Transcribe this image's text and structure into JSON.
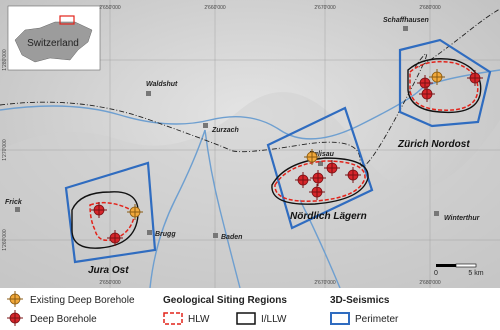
{
  "inset_label": "Switzerland",
  "grid_labels": {
    "top": [
      "2'650'000",
      "2'660'000",
      "2'670'000",
      "2'680'000"
    ],
    "left": [
      "1'280'000",
      "1'270'000",
      "1'260'000"
    ],
    "bottom": [
      "2'650'000",
      "2'670'000",
      "2'680'000"
    ]
  },
  "places": [
    "Schaffhausen",
    "Waldshut",
    "Zurzach",
    "Eglisau",
    "Frick",
    "Brugg",
    "Baden",
    "Winterthur"
  ],
  "regions": [
    "Zürich Nordost",
    "Nördlich Lägern",
    "Jura Ost"
  ],
  "scale": {
    "start": "0",
    "end": "5 km"
  },
  "legend": {
    "existing_borehole": "Existing Deep Borehole",
    "deep_borehole": "Deep Borehole",
    "siting_heading": "Geological Siting Regions",
    "hlw": "HLW",
    "illw": "I/LLW",
    "seismics_heading": "3D-Seismics",
    "perimeter": "Perimeter"
  }
}
